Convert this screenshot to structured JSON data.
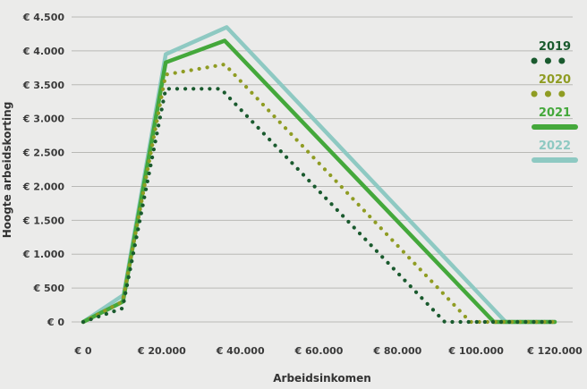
{
  "chart_data": {
    "type": "line",
    "xlabel": "Arbeidsinkomen",
    "ylabel": "Hoogte arbeidskorting",
    "xlim": [
      0,
      120000
    ],
    "ylim": [
      0,
      4500
    ],
    "grid": true,
    "legend_position": "right",
    "x_ticks": [
      {
        "value": 0,
        "label": "€ 0"
      },
      {
        "value": 20000,
        "label": "€ 20.000"
      },
      {
        "value": 40000,
        "label": "€ 40.000"
      },
      {
        "value": 60000,
        "label": "€ 60.000"
      },
      {
        "value": 80000,
        "label": "€ 80.000"
      },
      {
        "value": 100000,
        "label": "€ 100.000"
      },
      {
        "value": 120000,
        "label": "€ 120.000"
      }
    ],
    "y_ticks": [
      {
        "value": 0,
        "label": "€ 0"
      },
      {
        "value": 500,
        "label": "€ 500"
      },
      {
        "value": 1000,
        "label": "€ 1.000"
      },
      {
        "value": 1500,
        "label": "€ 1.500"
      },
      {
        "value": 2000,
        "label": "€ 2.000"
      },
      {
        "value": 2500,
        "label": "€ 2.500"
      },
      {
        "value": 3000,
        "label": "€ 3.000"
      },
      {
        "value": 3500,
        "label": "€ 3.500"
      },
      {
        "value": 4000,
        "label": "€ 4.000"
      },
      {
        "value": 4500,
        "label": "€ 4.500"
      }
    ],
    "series": [
      {
        "name": "2022",
        "color": "#8ec9c2",
        "style": "solid",
        "points": [
          [
            0,
            0
          ],
          [
            10300,
            400
          ],
          [
            21000,
            3950
          ],
          [
            36500,
            4350
          ],
          [
            107500,
            0
          ],
          [
            120000,
            0
          ]
        ]
      },
      {
        "name": "2021",
        "color": "#44a83b",
        "style": "solid",
        "points": [
          [
            0,
            0
          ],
          [
            10100,
            300
          ],
          [
            21000,
            3830
          ],
          [
            36000,
            4150
          ],
          [
            104500,
            0
          ],
          [
            120000,
            0
          ]
        ]
      },
      {
        "name": "2020",
        "color": "#8f9c23",
        "style": "dotted",
        "points": [
          [
            0,
            0
          ],
          [
            10000,
            300
          ],
          [
            21000,
            3650
          ],
          [
            36000,
            3800
          ],
          [
            98500,
            0
          ],
          [
            120000,
            0
          ]
        ]
      },
      {
        "name": "2019",
        "color": "#1a5a2e",
        "style": "dotted",
        "points": [
          [
            0,
            0
          ],
          [
            10000,
            200
          ],
          [
            21000,
            3440
          ],
          [
            35000,
            3440
          ],
          [
            92000,
            0
          ],
          [
            120000,
            0
          ]
        ]
      }
    ]
  }
}
